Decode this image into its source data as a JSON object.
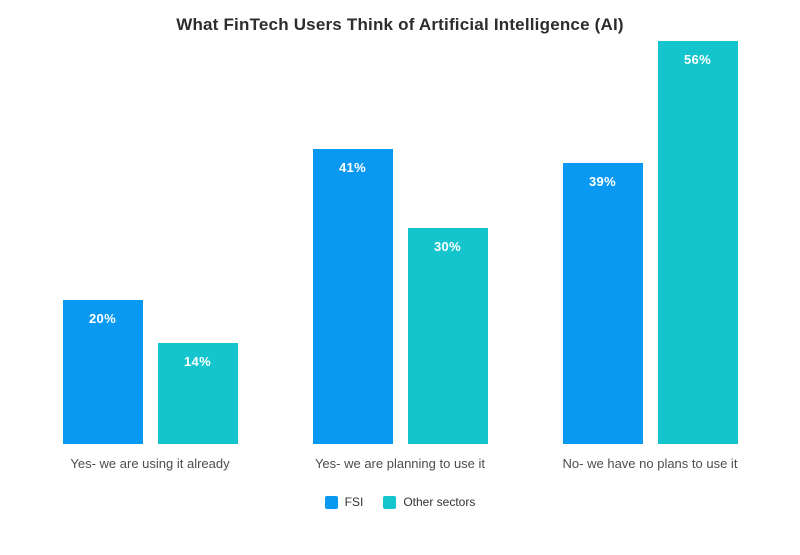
{
  "page": {
    "background": "#ffffff"
  },
  "chart_data": {
    "type": "bar",
    "title": "What FinTech Users Think of Artificial Intelligence (AI)",
    "categories": [
      "Yes- we are using it already",
      "Yes- we are planning to use it",
      "No- we have no plans to use it"
    ],
    "series": [
      {
        "name": "FSI",
        "color": "#0999F2",
        "values": [
          20,
          41,
          39
        ]
      },
      {
        "name": "Other sectors",
        "color": "#15C5CE",
        "values": [
          14,
          30,
          56
        ]
      }
    ],
    "value_labels": [
      [
        "20%",
        "41%",
        "39%"
      ],
      [
        "14%",
        "30%",
        "56%"
      ]
    ],
    "xlabel": "",
    "ylabel": "",
    "ylim": [
      0,
      56
    ],
    "grid": false,
    "axes_visible": false,
    "legend_position": "bottom",
    "value_label_color": "#ffffff"
  }
}
